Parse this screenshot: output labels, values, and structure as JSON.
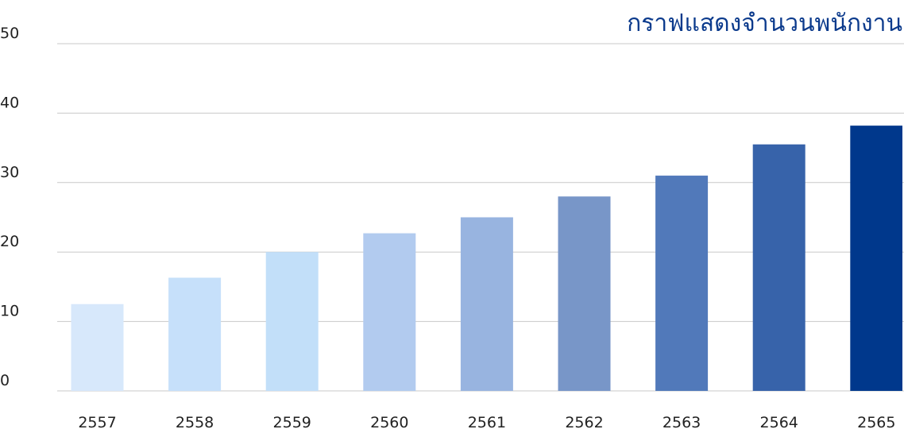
{
  "chart_data": {
    "type": "bar",
    "title": "กราฟแสดงจำนวนพนักงาน",
    "xlabel": "",
    "ylabel": "",
    "categories": [
      "2557",
      "2558",
      "2559",
      "2560",
      "2561",
      "2562",
      "2563",
      "2564",
      "2565"
    ],
    "values": [
      12.5,
      16.3,
      20,
      22.7,
      25,
      28,
      31,
      35.5,
      38.2
    ],
    "ylim": [
      0,
      50
    ],
    "yticks": [
      "0",
      "10",
      "20",
      "30",
      "40",
      "50"
    ],
    "grid": true,
    "legend": "none",
    "colors": [
      "#d7e8fb",
      "#c6e0fa",
      "#c2dff9",
      "#b2cbef",
      "#98b4e0",
      "#7896c8",
      "#5179ba",
      "#3763aa",
      "#00388c"
    ],
    "gridline_color": "#c8c8c8",
    "title_color": "#0b3a8c",
    "tick_color": "#222222"
  }
}
